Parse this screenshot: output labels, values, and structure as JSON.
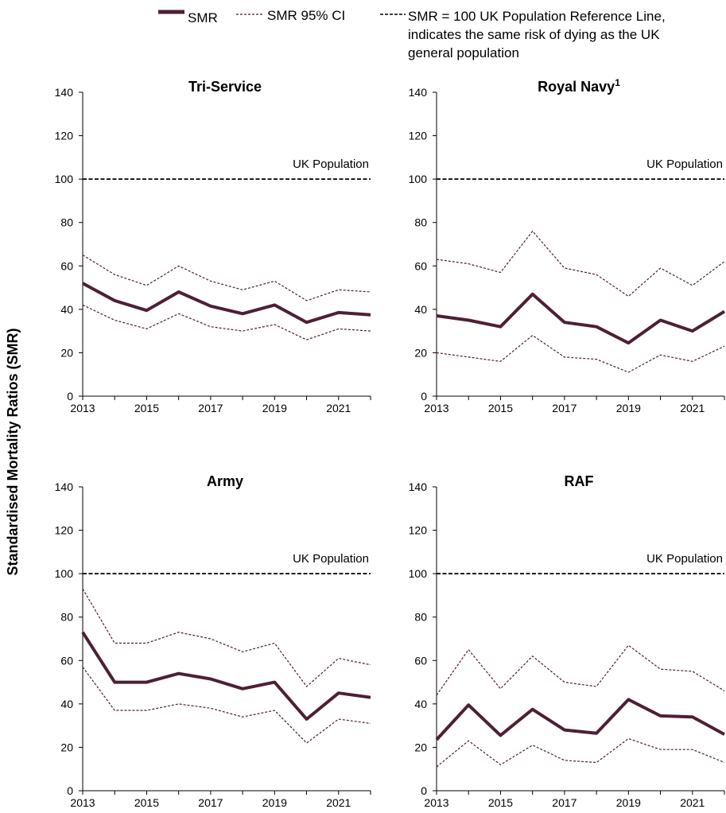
{
  "legend": {
    "smr_label": "SMR",
    "ci_label": "SMR 95% CI",
    "ref_label_lines": [
      "SMR = 100 UK Population Reference Line,",
      "indicates the same risk of dying as the UK",
      "general population"
    ]
  },
  "ylabel": "Standardised Mortality Ratios (SMR)",
  "colors": {
    "smr": "#4e1f35",
    "ci": "#4e1f35",
    "reference": "#000000"
  },
  "chart_data": [
    {
      "type": "line",
      "title": "Tri-Service",
      "title_sup": "",
      "x": [
        2013,
        2014,
        2015,
        2016,
        2017,
        2018,
        2019,
        2020,
        2021,
        2022
      ],
      "xticks": [
        "2013",
        "2015",
        "2017",
        "2019",
        "2021"
      ],
      "yticks": [
        "0",
        "20",
        "40",
        "60",
        "80",
        "100",
        "120",
        "140"
      ],
      "ylim": [
        0,
        140
      ],
      "reference": {
        "value": 100,
        "label": "UK Population"
      },
      "series": [
        {
          "name": "SMR",
          "values": [
            52,
            44,
            39.5,
            48,
            41.5,
            38,
            42,
            34,
            38.5,
            37.5
          ]
        },
        {
          "name": "SMR 95% CI",
          "values": [
            65,
            56,
            51,
            60,
            53,
            49,
            53,
            44,
            49,
            48
          ]
        },
        {
          "name": "SMR 95% CI",
          "values": [
            42,
            35,
            31,
            38,
            32,
            30,
            33,
            26,
            31,
            30
          ]
        }
      ]
    },
    {
      "type": "line",
      "title": "Royal Navy",
      "title_sup": "1",
      "x": [
        2013,
        2014,
        2015,
        2016,
        2017,
        2018,
        2019,
        2020,
        2021,
        2022
      ],
      "xticks": [
        "2013",
        "2015",
        "2017",
        "2019",
        "2021"
      ],
      "yticks": [
        "0",
        "20",
        "40",
        "60",
        "80",
        "100",
        "120",
        "140"
      ],
      "ylim": [
        0,
        140
      ],
      "reference": {
        "value": 100,
        "label": "UK Population"
      },
      "series": [
        {
          "name": "SMR",
          "values": [
            37,
            35,
            32,
            47,
            34,
            32,
            24.5,
            35,
            30,
            39
          ]
        },
        {
          "name": "SMR 95% CI",
          "values": [
            63,
            61,
            57,
            76,
            59,
            56,
            46,
            59,
            51,
            62
          ]
        },
        {
          "name": "SMR 95% CI",
          "values": [
            20,
            18,
            16,
            28,
            18,
            17,
            11,
            19,
            16,
            23
          ]
        }
      ]
    },
    {
      "type": "line",
      "title": "Army",
      "title_sup": "",
      "x": [
        2013,
        2014,
        2015,
        2016,
        2017,
        2018,
        2019,
        2020,
        2021,
        2022
      ],
      "xticks": [
        "2013",
        "2015",
        "2017",
        "2019",
        "2021"
      ],
      "yticks": [
        "0",
        "20",
        "40",
        "60",
        "80",
        "100",
        "120",
        "140"
      ],
      "ylim": [
        0,
        140
      ],
      "reference": {
        "value": 100,
        "label": "UK Population"
      },
      "series": [
        {
          "name": "SMR",
          "values": [
            73,
            50,
            50,
            54,
            51.5,
            47,
            50,
            33,
            45,
            43
          ]
        },
        {
          "name": "SMR 95% CI",
          "values": [
            93,
            68,
            68,
            73,
            70,
            64,
            68,
            48,
            61,
            58
          ]
        },
        {
          "name": "SMR 95% CI",
          "values": [
            57,
            37,
            37,
            40,
            38,
            34,
            37,
            22,
            33,
            31
          ]
        }
      ]
    },
    {
      "type": "line",
      "title": "RAF",
      "title_sup": "",
      "x": [
        2013,
        2014,
        2015,
        2016,
        2017,
        2018,
        2019,
        2020,
        2021,
        2022
      ],
      "xticks": [
        "2013",
        "2015",
        "2017",
        "2019",
        "2021"
      ],
      "yticks": [
        "0",
        "20",
        "40",
        "60",
        "80",
        "100",
        "120",
        "140"
      ],
      "ylim": [
        0,
        140
      ],
      "reference": {
        "value": 100,
        "label": "UK Population"
      },
      "series": [
        {
          "name": "SMR",
          "values": [
            23.5,
            39.5,
            25.5,
            37.5,
            28,
            26.5,
            42,
            34.5,
            34,
            26
          ]
        },
        {
          "name": "SMR 95% CI",
          "values": [
            44,
            65,
            47,
            62,
            50,
            48,
            67,
            56,
            55,
            46
          ]
        },
        {
          "name": "SMR 95% CI",
          "values": [
            11,
            23,
            12,
            21,
            14,
            13,
            24,
            19,
            19,
            13
          ]
        }
      ]
    }
  ]
}
